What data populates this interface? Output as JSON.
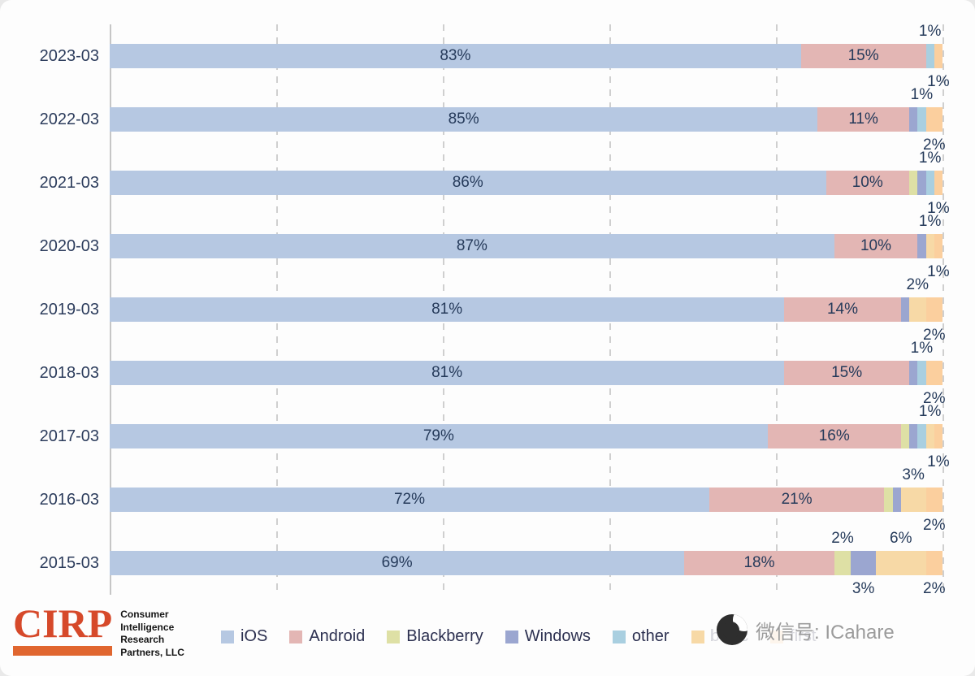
{
  "chart_data": {
    "type": "bar",
    "orientation": "horizontal",
    "stacked": true,
    "unit": "%",
    "title": "",
    "x_axis": {
      "min": 0,
      "max": 100,
      "gridlines_pct": [
        20,
        40,
        60,
        80,
        100
      ],
      "tick_labels_visible": false
    },
    "categories": [
      "2023-03",
      "2022-03",
      "2021-03",
      "2020-03",
      "2019-03",
      "2018-03",
      "2017-03",
      "2016-03",
      "2015-03"
    ],
    "series_names": [
      "iOS",
      "Android",
      "Blackberry",
      "Windows",
      "other",
      "basic",
      "first"
    ],
    "series_colors": {
      "iOS": "#b6c8e2",
      "Android": "#e3b6b4",
      "Blackberry": "#dee0a5",
      "Windows": "#9ba6d0",
      "other": "#a9cfe0",
      "basic": "#f7d9a6",
      "first": "#fbcf9e"
    },
    "label_threshold_inside": 10,
    "rows": [
      {
        "year": "2023-03",
        "values": [
          83,
          15,
          0,
          0,
          1,
          0,
          1
        ],
        "callouts": [
          {
            "index": 4,
            "text": "1%",
            "pos": "above"
          },
          {
            "index": 6,
            "text": "1%",
            "pos": "below"
          }
        ]
      },
      {
        "year": "2022-03",
        "values": [
          85,
          11,
          0,
          1,
          1,
          0,
          2
        ],
        "callouts": [
          {
            "index": 4,
            "text": "1%",
            "pos": "above"
          },
          {
            "index": 6,
            "text": "2%",
            "pos": "below"
          }
        ]
      },
      {
        "year": "2021-03",
        "values": [
          86,
          10,
          1,
          1,
          1,
          0,
          1
        ],
        "callouts": [
          {
            "index": 4,
            "text": "1%",
            "pos": "above"
          },
          {
            "index": 6,
            "text": "1%",
            "pos": "below"
          }
        ]
      },
      {
        "year": "2020-03",
        "values": [
          87,
          10,
          0,
          1,
          0,
          1,
          1
        ],
        "callouts": [
          {
            "index": 5,
            "text": "1%",
            "pos": "above"
          },
          {
            "index": 6,
            "text": "1%",
            "pos": "below"
          }
        ]
      },
      {
        "year": "2019-03",
        "values": [
          81,
          14,
          0,
          1,
          0,
          2,
          2
        ],
        "callouts": [
          {
            "index": 5,
            "text": "2%",
            "pos": "above"
          },
          {
            "index": 6,
            "text": "2%",
            "pos": "below"
          }
        ]
      },
      {
        "year": "2018-03",
        "values": [
          81,
          15,
          0,
          1,
          1,
          0,
          2
        ],
        "callouts": [
          {
            "index": 4,
            "text": "1%",
            "pos": "above"
          },
          {
            "index": 6,
            "text": "2%",
            "pos": "below"
          }
        ]
      },
      {
        "year": "2017-03",
        "values": [
          79,
          16,
          1,
          1,
          1,
          1,
          1
        ],
        "callouts": [
          {
            "index": 5,
            "text": "1%",
            "pos": "above"
          },
          {
            "index": 6,
            "text": "1%",
            "pos": "below"
          }
        ]
      },
      {
        "year": "2016-03",
        "values": [
          72,
          21,
          1,
          1,
          0,
          3,
          2
        ],
        "callouts": [
          {
            "index": 5,
            "text": "3%",
            "pos": "above"
          },
          {
            "index": 6,
            "text": "2%",
            "pos": "below"
          }
        ]
      },
      {
        "year": "2015-03",
        "values": [
          69,
          18,
          2,
          3,
          0,
          6,
          2
        ],
        "callouts": [
          {
            "index": 2,
            "text": "2%",
            "pos": "above"
          },
          {
            "index": 3,
            "text": "3%",
            "pos": "below"
          },
          {
            "index": 5,
            "text": "6%",
            "pos": "above"
          },
          {
            "index": 6,
            "text": "2%",
            "pos": "below"
          }
        ]
      }
    ],
    "legend_position": "bottom"
  },
  "logo": {
    "name": "CIRP",
    "lines": [
      "Consumer",
      "Intelligence",
      "Research",
      "Partners, LLC"
    ],
    "accent_color": "#d6492a"
  },
  "watermark": {
    "text": "微信号: ICahare"
  }
}
